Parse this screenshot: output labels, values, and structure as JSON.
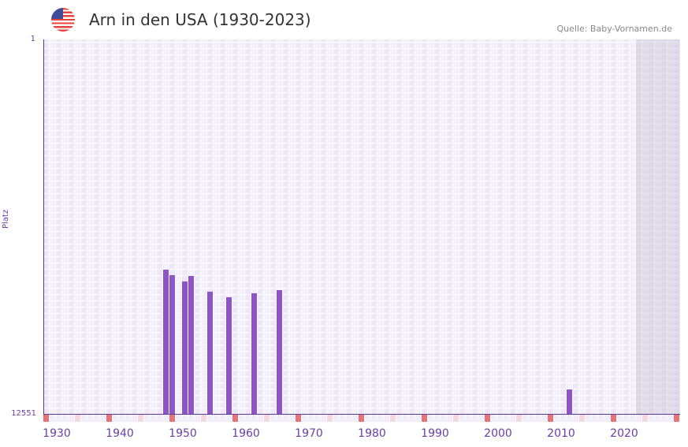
{
  "header": {
    "title": "Arn in den USA (1930-2023)",
    "source": "Quelle: Baby-Vornamen.de",
    "flag_icon": "us-flag"
  },
  "chart_data": {
    "type": "bar",
    "title": "Arn in den USA (1930-2023)",
    "xlabel": "",
    "ylabel": "Platz",
    "ylim": [
      1,
      12551
    ],
    "y_inverted": true,
    "yticks": [
      "1",
      "12551"
    ],
    "xlim": [
      1928,
      2028
    ],
    "xticks": [
      "1930",
      "1940",
      "1950",
      "1960",
      "1970",
      "1980",
      "1990",
      "2000",
      "2010",
      "2020"
    ],
    "x": [
      1947,
      1948,
      1950,
      1951,
      1954,
      1957,
      1961,
      1965,
      2011
    ],
    "values": [
      7715,
      7900,
      8112,
      7927,
      8455,
      8640,
      8508,
      8403,
      11732
    ],
    "bar_color": "#8d55c6"
  }
}
